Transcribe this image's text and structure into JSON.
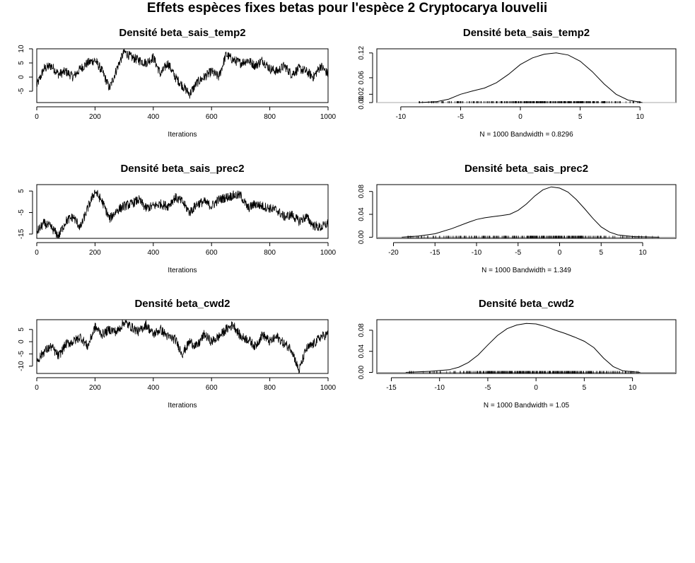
{
  "figure_title": "Effets espèces fixes betas pour l'espèce 2  Cryptocarya louvelii",
  "chart_data": [
    {
      "type": "line",
      "title": "Densité  beta_sais_temp2",
      "xlabel": "Iterations",
      "ylabel": "",
      "xlim": [
        0,
        1000
      ],
      "ylim": [
        -9,
        10
      ],
      "xticks": [
        0,
        200,
        400,
        600,
        800,
        1000
      ],
      "yticks": [
        -5,
        0,
        5,
        10
      ],
      "series": [
        {
          "x": [
            0,
            25,
            50,
            75,
            100,
            125,
            150,
            175,
            200,
            225,
            250,
            275,
            300,
            325,
            350,
            375,
            400,
            425,
            450,
            475,
            500,
            525,
            550,
            575,
            600,
            625,
            650,
            675,
            700,
            725,
            750,
            775,
            800,
            825,
            850,
            875,
            900,
            925,
            950,
            975,
            1000
          ],
          "values": [
            -3,
            3,
            4,
            1,
            2,
            0,
            3,
            5,
            6,
            2,
            -4,
            3,
            9,
            7,
            6,
            5,
            7,
            1,
            5,
            0,
            -3,
            -6,
            -2,
            0,
            2,
            0,
            8,
            6,
            5,
            6,
            4,
            6,
            3,
            2,
            4,
            1,
            3,
            2,
            0,
            4,
            1
          ]
        }
      ]
    },
    {
      "type": "area",
      "title": "Densité  beta_sais_temp2",
      "xlabel": "N = 1000   Bandwidth = 0.8296",
      "ylabel": "",
      "xlim": [
        -12,
        13
      ],
      "ylim": [
        0,
        0.13
      ],
      "xticks": [
        -10,
        -5,
        0,
        5,
        10
      ],
      "yticks": [
        0,
        0.02,
        0.06,
        0.12
      ],
      "ytick_labels": [
        "0.00",
        "0.02",
        "0.06",
        "0.12"
      ],
      "series": [
        {
          "x": [
            -8.5,
            -7,
            -6,
            -5,
            -4,
            -3,
            -2,
            -1,
            0,
            1,
            2,
            3,
            4,
            5,
            6,
            7,
            8,
            9,
            10.2
          ],
          "values": [
            0,
            0.002,
            0.008,
            0.02,
            0.028,
            0.035,
            0.048,
            0.068,
            0.092,
            0.108,
            0.117,
            0.12,
            0.115,
            0.1,
            0.075,
            0.045,
            0.02,
            0.006,
            0
          ]
        }
      ],
      "rug": true
    },
    {
      "type": "line",
      "title": "Densité  beta_sais_prec2",
      "xlabel": "Iterations",
      "ylabel": "",
      "xlim": [
        0,
        1000
      ],
      "ylim": [
        -17,
        8
      ],
      "xticks": [
        0,
        200,
        400,
        600,
        800,
        1000
      ],
      "yticks": [
        -15,
        -5,
        5
      ],
      "series": [
        {
          "x": [
            0,
            25,
            50,
            75,
            100,
            125,
            150,
            175,
            200,
            225,
            250,
            275,
            300,
            325,
            350,
            375,
            400,
            425,
            450,
            475,
            500,
            525,
            550,
            575,
            600,
            625,
            650,
            675,
            700,
            725,
            750,
            775,
            800,
            825,
            850,
            875,
            900,
            925,
            950,
            975,
            1000
          ],
          "values": [
            -14,
            -10,
            -12,
            -16,
            -9,
            -7,
            -12,
            -3,
            5,
            0,
            -8,
            -4,
            -2,
            -1,
            1,
            -3,
            -2,
            -1,
            -2,
            2,
            0,
            -5,
            -1,
            0,
            -2,
            1,
            2,
            3,
            3,
            -3,
            -1,
            -2,
            -3,
            -4,
            -7,
            -6,
            -9,
            -7,
            -11,
            -12,
            -10
          ]
        }
      ]
    },
    {
      "type": "area",
      "title": "Densité  beta_sais_prec2",
      "xlabel": "N = 1000   Bandwidth = 1.349",
      "ylabel": "",
      "xlim": [
        -22,
        14
      ],
      "ylim": [
        -0.002,
        0.092
      ],
      "xticks": [
        -20,
        -15,
        -10,
        -5,
        0,
        5,
        10
      ],
      "yticks": [
        0,
        0.04,
        0.08
      ],
      "ytick_labels": [
        "0.00",
        "0.04",
        "0.08"
      ],
      "series": [
        {
          "x": [
            -19,
            -17,
            -15,
            -13,
            -11,
            -10,
            -9,
            -8,
            -7,
            -6,
            -5,
            -4,
            -3,
            -2,
            -1,
            0,
            1,
            2,
            3,
            4,
            5,
            6,
            7,
            9,
            12
          ],
          "values": [
            0,
            0.002,
            0.006,
            0.015,
            0.026,
            0.031,
            0.034,
            0.036,
            0.038,
            0.04,
            0.047,
            0.058,
            0.072,
            0.083,
            0.088,
            0.086,
            0.079,
            0.066,
            0.05,
            0.033,
            0.018,
            0.009,
            0.004,
            0.001,
            0
          ]
        }
      ],
      "rug": true
    },
    {
      "type": "line",
      "title": "Densité  beta_cwd2",
      "xlabel": "Iterations",
      "ylabel": "",
      "xlim": [
        0,
        1000
      ],
      "ylim": [
        -13,
        9
      ],
      "xticks": [
        0,
        200,
        400,
        600,
        800,
        1000
      ],
      "yticks": [
        -10,
        -5,
        0,
        5
      ],
      "series": [
        {
          "x": [
            0,
            25,
            50,
            75,
            100,
            125,
            150,
            175,
            200,
            225,
            250,
            275,
            300,
            325,
            350,
            375,
            400,
            425,
            450,
            475,
            500,
            525,
            550,
            575,
            600,
            625,
            650,
            675,
            700,
            725,
            750,
            775,
            800,
            825,
            850,
            875,
            900,
            925,
            950,
            975,
            1000
          ],
          "values": [
            -8,
            -4,
            -2,
            -6,
            -1,
            0,
            2,
            -2,
            6,
            3,
            5,
            4,
            8,
            6,
            4,
            7,
            3,
            5,
            2,
            1,
            -5,
            0,
            -2,
            3,
            0,
            2,
            5,
            7,
            2,
            1,
            -2,
            3,
            0,
            2,
            -1,
            -3,
            -12,
            -3,
            -1,
            2,
            3
          ]
        }
      ]
    },
    {
      "type": "area",
      "title": "Densité  beta_cwd2",
      "xlabel": "N = 1000   Bandwidth = 1.05",
      "ylabel": "",
      "xlim": [
        -16.5,
        14.5
      ],
      "ylim": [
        -0.002,
        0.1
      ],
      "xticks": [
        -15,
        -10,
        -5,
        0,
        5,
        10
      ],
      "yticks": [
        0,
        0.04,
        0.08
      ],
      "ytick_labels": [
        "0.00",
        "0.04",
        "0.08"
      ],
      "series": [
        {
          "x": [
            -13.5,
            -11,
            -9,
            -8,
            -7,
            -6,
            -5,
            -4,
            -3,
            -2,
            -1,
            0,
            1,
            2,
            3,
            4,
            5,
            6,
            7,
            8,
            9,
            10.8
          ],
          "values": [
            0,
            0.002,
            0.005,
            0.01,
            0.019,
            0.033,
            0.052,
            0.07,
            0.083,
            0.09,
            0.093,
            0.092,
            0.087,
            0.08,
            0.074,
            0.067,
            0.059,
            0.047,
            0.027,
            0.011,
            0.003,
            0
          ]
        }
      ],
      "rug": true
    }
  ]
}
